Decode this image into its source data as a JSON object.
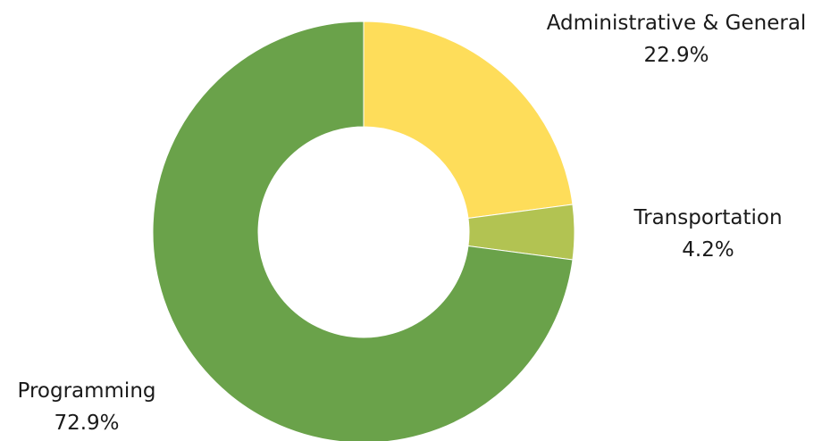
{
  "chart_data": {
    "type": "pie",
    "variant": "donut",
    "slices": [
      {
        "label": "Administrative & General",
        "value": 22.9,
        "value_text": "22.9%",
        "color": "#FEDD5A"
      },
      {
        "label": "Transportation",
        "value": 4.2,
        "value_text": "4.2%",
        "color": "#B2C352"
      },
      {
        "label": "Programming",
        "value": 72.9,
        "value_text": "72.9%",
        "color": "#6AA24A"
      }
    ]
  }
}
